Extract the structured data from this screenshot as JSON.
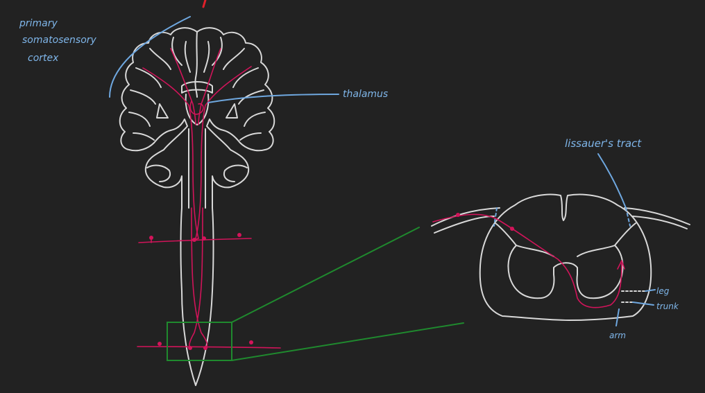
{
  "labels": {
    "cortex_line1": "primary",
    "cortex_line2": "somatosensory",
    "cortex_line3": "cortex",
    "thalamus": "thalamus",
    "lissauer": "lissauer's tract",
    "leg": "leg",
    "trunk": "trunk",
    "arm": "arm"
  },
  "colors": {
    "background": "#222222",
    "outline": "#d9d9d9",
    "pathway": "#d2145a",
    "annotation": "#7fb6ea",
    "magnifier": "#1f8a2e"
  }
}
